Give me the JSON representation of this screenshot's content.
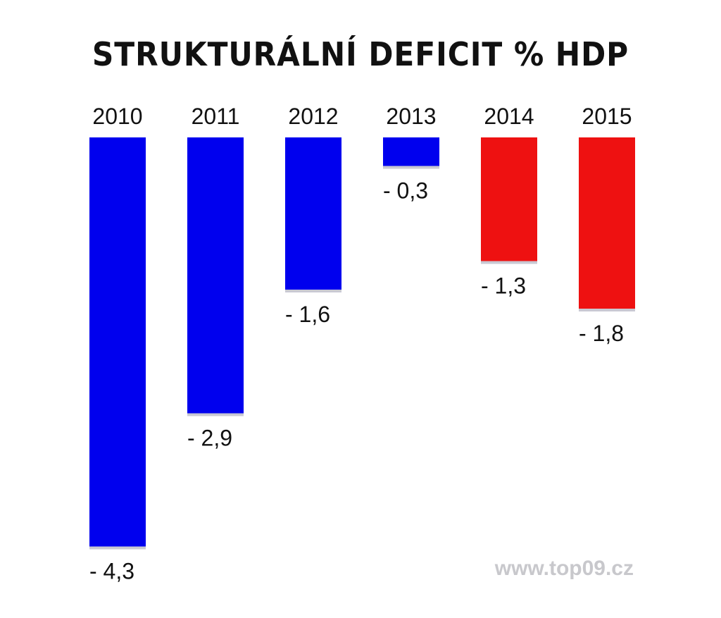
{
  "chart_data": {
    "type": "bar",
    "title": "STRUKTURÁLNÍ DEFICIT % HDP",
    "categories": [
      "2010",
      "2011",
      "2012",
      "2013",
      "2014",
      "2015"
    ],
    "values": [
      -4.3,
      -2.9,
      -1.6,
      -0.3,
      -1.3,
      -1.8
    ],
    "value_labels": [
      "- 4,3",
      "- 2,9",
      "- 1,6",
      "- 0,3",
      "- 1,3",
      "- 1,8"
    ],
    "bar_colors": [
      "#0000ee",
      "#0000ee",
      "#0000ee",
      "#0000ee",
      "#ee1111",
      "#ee1111"
    ],
    "xlabel": "",
    "ylabel": "",
    "ylim": [
      -4.3,
      0
    ],
    "grid": false,
    "legend": "none"
  },
  "watermark": "www.top09.cz"
}
